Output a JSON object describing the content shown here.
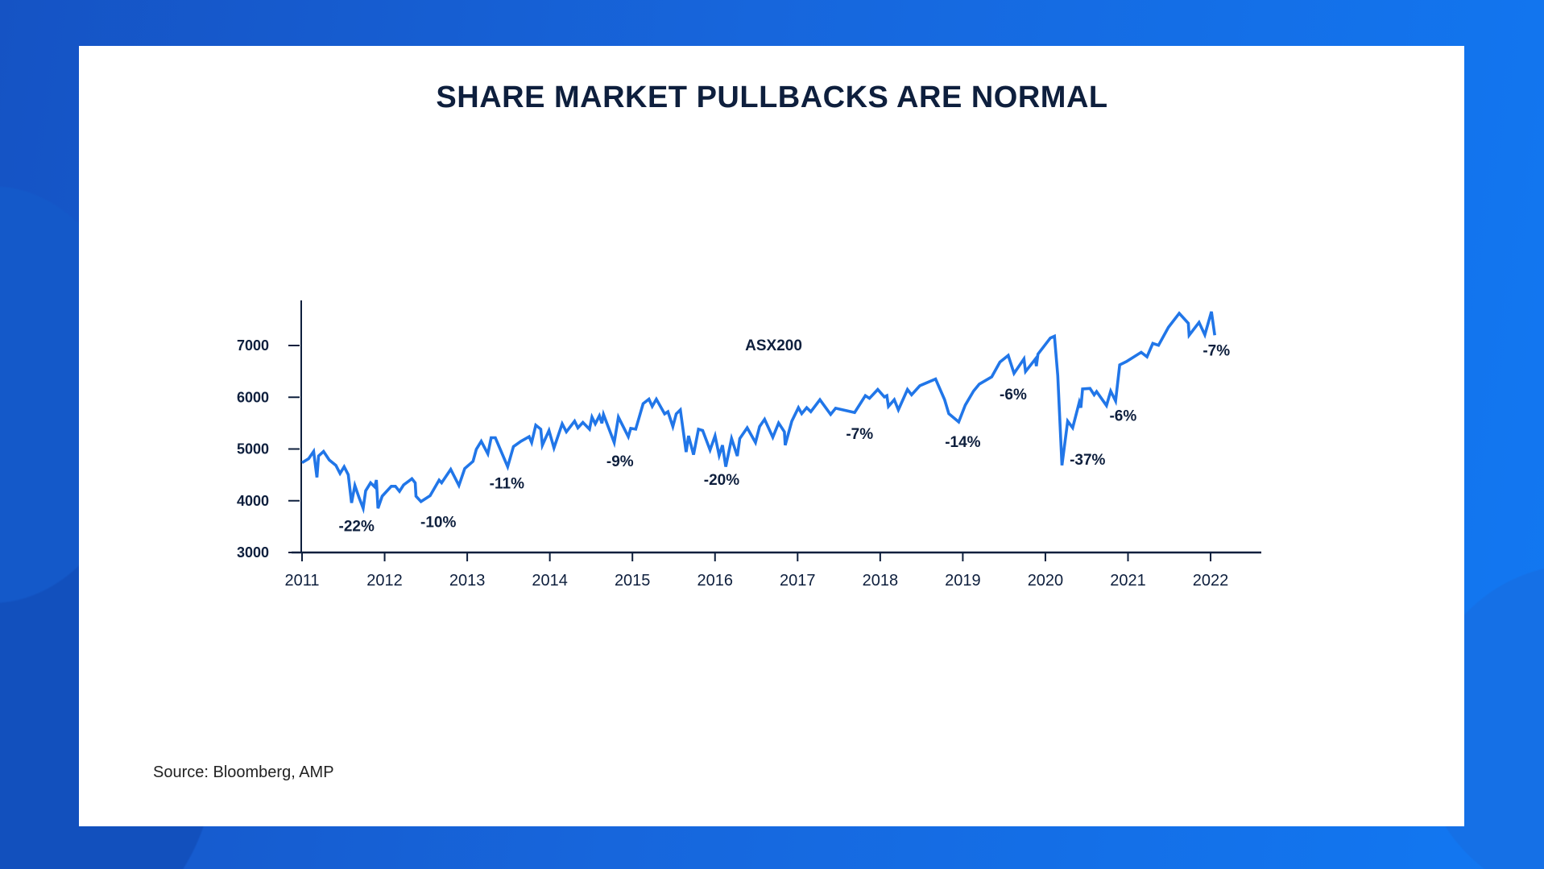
{
  "title": "SHARE MARKET PULLBACKS ARE NORMAL",
  "source": "Source: Bloomberg, AMP",
  "colors": {
    "line": "#2176e8",
    "text": "#0e1f3d",
    "background": "#1766dc"
  },
  "chart_data": {
    "type": "line",
    "title": "SHARE MARKET PULLBACKS ARE NORMAL",
    "series": [
      {
        "name": "ASX200",
        "color": "#2176e8"
      }
    ],
    "xlim": [
      2011,
      2022.6
    ],
    "ylim": [
      3000,
      7800
    ],
    "x_ticks": [
      "2011",
      "2012",
      "2013",
      "2014",
      "2015",
      "2016",
      "2017",
      "2018",
      "2019",
      "2020",
      "2021",
      "2022"
    ],
    "y_ticks": [
      "3000",
      "4000",
      "5000",
      "6000",
      "7000"
    ],
    "grid": false,
    "legend": "none",
    "points": [
      [
        2011.0,
        4736
      ],
      [
        2011.08,
        4813
      ],
      [
        2011.14,
        4953
      ],
      [
        2011.18,
        4450
      ],
      [
        2011.2,
        4865
      ],
      [
        2011.26,
        4953
      ],
      [
        2011.33,
        4788
      ],
      [
        2011.41,
        4684
      ],
      [
        2011.46,
        4528
      ],
      [
        2011.51,
        4658
      ],
      [
        2011.56,
        4503
      ],
      [
        2011.6,
        3958
      ],
      [
        2011.64,
        4295
      ],
      [
        2011.69,
        4062
      ],
      [
        2011.74,
        3855
      ],
      [
        2011.77,
        4192
      ],
      [
        2011.83,
        4347
      ],
      [
        2011.88,
        4269
      ],
      [
        2011.9,
        4400
      ],
      [
        2011.92,
        3855
      ],
      [
        2011.97,
        4088
      ],
      [
        2012.08,
        4280
      ],
      [
        2012.13,
        4280
      ],
      [
        2012.18,
        4181
      ],
      [
        2012.23,
        4306
      ],
      [
        2012.33,
        4425
      ],
      [
        2012.37,
        4347
      ],
      [
        2012.38,
        4088
      ],
      [
        2012.44,
        3984
      ],
      [
        2012.55,
        4098
      ],
      [
        2012.66,
        4399
      ],
      [
        2012.69,
        4347
      ],
      [
        2012.8,
        4606
      ],
      [
        2012.9,
        4295
      ],
      [
        2012.97,
        4622
      ],
      [
        2013.07,
        4762
      ],
      [
        2013.11,
        4995
      ],
      [
        2013.17,
        5150
      ],
      [
        2013.25,
        4907
      ],
      [
        2013.29,
        5218
      ],
      [
        2013.34,
        5218
      ],
      [
        2013.49,
        4658
      ],
      [
        2013.56,
        5047
      ],
      [
        2013.65,
        5150
      ],
      [
        2013.75,
        5238
      ],
      [
        2013.78,
        5124
      ],
      [
        2013.83,
        5461
      ],
      [
        2013.89,
        5383
      ],
      [
        2013.91,
        5073
      ],
      [
        2013.99,
        5358
      ],
      [
        2014.05,
        5021
      ],
      [
        2014.15,
        5487
      ],
      [
        2014.2,
        5332
      ],
      [
        2014.3,
        5539
      ],
      [
        2014.34,
        5409
      ],
      [
        2014.4,
        5513
      ],
      [
        2014.48,
        5383
      ],
      [
        2014.51,
        5617
      ],
      [
        2014.55,
        5487
      ],
      [
        2014.6,
        5642
      ],
      [
        2014.63,
        5497
      ],
      [
        2014.65,
        5668
      ],
      [
        2014.78,
        5124
      ],
      [
        2014.83,
        5617
      ],
      [
        2014.95,
        5238
      ],
      [
        2014.98,
        5399
      ],
      [
        2015.04,
        5383
      ],
      [
        2015.13,
        5876
      ],
      [
        2015.2,
        5964
      ],
      [
        2015.24,
        5824
      ],
      [
        2015.29,
        5964
      ],
      [
        2015.39,
        5679
      ],
      [
        2015.43,
        5720
      ],
      [
        2015.49,
        5435
      ],
      [
        2015.53,
        5679
      ],
      [
        2015.58,
        5756
      ],
      [
        2015.65,
        4943
      ],
      [
        2015.68,
        5254
      ],
      [
        2015.74,
        4891
      ],
      [
        2015.8,
        5383
      ],
      [
        2015.85,
        5358
      ],
      [
        2015.94,
        4979
      ],
      [
        2016.0,
        5254
      ],
      [
        2016.05,
        4876
      ],
      [
        2016.09,
        5073
      ],
      [
        2016.13,
        4658
      ],
      [
        2016.2,
        5202
      ],
      [
        2016.27,
        4865
      ],
      [
        2016.3,
        5202
      ],
      [
        2016.39,
        5409
      ],
      [
        2016.49,
        5124
      ],
      [
        2016.54,
        5435
      ],
      [
        2016.6,
        5575
      ],
      [
        2016.7,
        5228
      ],
      [
        2016.77,
        5503
      ],
      [
        2016.84,
        5332
      ],
      [
        2016.85,
        5073
      ],
      [
        2016.93,
        5539
      ],
      [
        2017.01,
        5798
      ],
      [
        2017.05,
        5684
      ],
      [
        2017.11,
        5798
      ],
      [
        2017.16,
        5720
      ],
      [
        2017.27,
        5953
      ],
      [
        2017.4,
        5668
      ],
      [
        2017.46,
        5788
      ],
      [
        2017.69,
        5705
      ],
      [
        2017.82,
        6031
      ],
      [
        2017.87,
        5979
      ],
      [
        2017.97,
        6150
      ],
      [
        2018.05,
        6005
      ],
      [
        2018.08,
        6031
      ],
      [
        2018.1,
        5824
      ],
      [
        2018.17,
        5953
      ],
      [
        2018.22,
        5756
      ],
      [
        2018.33,
        6150
      ],
      [
        2018.38,
        6047
      ],
      [
        2018.48,
        6223
      ],
      [
        2018.67,
        6352
      ],
      [
        2018.78,
        5953
      ],
      [
        2018.83,
        5684
      ],
      [
        2018.95,
        5523
      ],
      [
        2019.03,
        5850
      ],
      [
        2019.13,
        6119
      ],
      [
        2019.2,
        6254
      ],
      [
        2019.35,
        6394
      ],
      [
        2019.45,
        6679
      ],
      [
        2019.55,
        6808
      ],
      [
        2019.62,
        6461
      ],
      [
        2019.74,
        6741
      ],
      [
        2019.76,
        6497
      ],
      [
        2019.88,
        6741
      ],
      [
        2019.89,
        6601
      ],
      [
        2019.91,
        6834
      ],
      [
        2020.06,
        7145
      ],
      [
        2020.11,
        7181
      ],
      [
        2020.15,
        6420
      ],
      [
        2020.2,
        4684
      ],
      [
        2020.27,
        5539
      ],
      [
        2020.33,
        5409
      ],
      [
        2020.41,
        5902
      ],
      [
        2020.43,
        5798
      ],
      [
        2020.45,
        6161
      ],
      [
        2020.54,
        6171
      ],
      [
        2020.59,
        6047
      ],
      [
        2020.62,
        6109
      ],
      [
        2020.74,
        5839
      ],
      [
        2020.79,
        6119
      ],
      [
        2020.85,
        5927
      ],
      [
        2020.9,
        6627
      ],
      [
        2020.98,
        6689
      ],
      [
        2021.16,
        6870
      ],
      [
        2021.23,
        6782
      ],
      [
        2021.3,
        7041
      ],
      [
        2021.37,
        7005
      ],
      [
        2021.49,
        7352
      ],
      [
        2021.62,
        7622
      ],
      [
        2021.73,
        7430
      ],
      [
        2021.74,
        7197
      ],
      [
        2021.86,
        7446
      ],
      [
        2021.93,
        7207
      ],
      [
        2022.01,
        7653
      ],
      [
        2022.05,
        7197
      ]
    ],
    "series_label": {
      "text": "ASX200",
      "x": 2016.71,
      "y": 7015
    },
    "annotations": [
      {
        "text": "-22%",
        "x": 2011.66,
        "y": 3518
      },
      {
        "text": "-10%",
        "x": 2012.65,
        "y": 3596
      },
      {
        "text": "-11%",
        "x": 2013.48,
        "y": 4347
      },
      {
        "text": "-9%",
        "x": 2014.85,
        "y": 4772
      },
      {
        "text": "-20%",
        "x": 2016.08,
        "y": 4415
      },
      {
        "text": "-7%",
        "x": 2017.75,
        "y": 5306
      },
      {
        "text": "-14%",
        "x": 2019.0,
        "y": 5150
      },
      {
        "text": "-6%",
        "x": 2019.61,
        "y": 6067
      },
      {
        "text": "-37%",
        "x": 2020.51,
        "y": 4803
      },
      {
        "text": "-6%",
        "x": 2020.94,
        "y": 5653
      },
      {
        "text": "-7%",
        "x": 2022.07,
        "y": 6912
      }
    ]
  }
}
